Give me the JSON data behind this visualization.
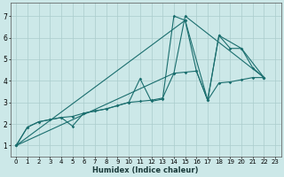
{
  "xlabel": "Humidex (Indice chaleur)",
  "bg_color": "#cce8e8",
  "grid_color": "#aacccc",
  "line_color": "#1a6e6e",
  "xlim": [
    -0.5,
    23.5
  ],
  "ylim": [
    0.5,
    7.6
  ],
  "xticks": [
    0,
    1,
    2,
    3,
    4,
    5,
    6,
    7,
    8,
    9,
    10,
    11,
    12,
    13,
    14,
    15,
    16,
    17,
    18,
    19,
    20,
    21,
    22,
    23
  ],
  "yticks": [
    1,
    2,
    3,
    4,
    5,
    6,
    7
  ],
  "line1_x": [
    0,
    1,
    2,
    3,
    4,
    5,
    6,
    7,
    8,
    9,
    10,
    11,
    12,
    13,
    14,
    15,
    16,
    17,
    18,
    19,
    20,
    21,
    22
  ],
  "line1_y": [
    1.0,
    1.85,
    2.1,
    2.2,
    2.3,
    2.35,
    2.5,
    2.6,
    2.7,
    2.85,
    3.0,
    3.05,
    3.1,
    3.2,
    4.35,
    4.4,
    4.45,
    3.1,
    3.9,
    3.95,
    4.05,
    4.15,
    4.15
  ],
  "line2_x": [
    0,
    1,
    2,
    3,
    4,
    5,
    6,
    7,
    8,
    9,
    10,
    11,
    12,
    13,
    14,
    15,
    16,
    17,
    18,
    19,
    20,
    21,
    22
  ],
  "line2_y": [
    1.0,
    1.85,
    2.1,
    2.2,
    2.3,
    1.9,
    2.5,
    2.6,
    2.7,
    2.85,
    3.0,
    4.1,
    3.05,
    3.15,
    7.0,
    6.8,
    4.45,
    3.1,
    6.1,
    5.5,
    5.5,
    4.6,
    4.15
  ],
  "line3_x": [
    0,
    15,
    17,
    18,
    20,
    22
  ],
  "line3_y": [
    1.0,
    6.8,
    3.1,
    6.1,
    5.5,
    4.15
  ],
  "line4_x": [
    0,
    14,
    15,
    22
  ],
  "line4_y": [
    1.0,
    4.35,
    7.0,
    4.15
  ]
}
